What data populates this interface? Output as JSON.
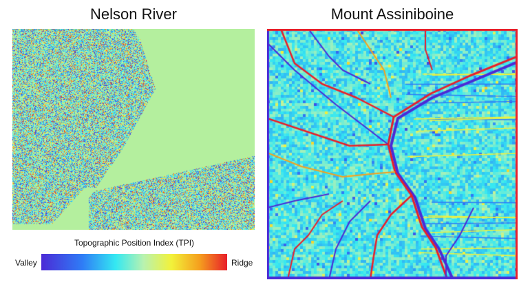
{
  "panels": [
    {
      "title": "Nelson River"
    },
    {
      "title": "Mount Assiniboine"
    }
  ],
  "legend": {
    "title": "Topographic Position Index (TPI)",
    "low_label": "Valley",
    "high_label": "Ridge"
  },
  "colors": {
    "valley": "#4b2bd6",
    "mid": "#b4ef9e",
    "ridge": "#e81f2a"
  }
}
